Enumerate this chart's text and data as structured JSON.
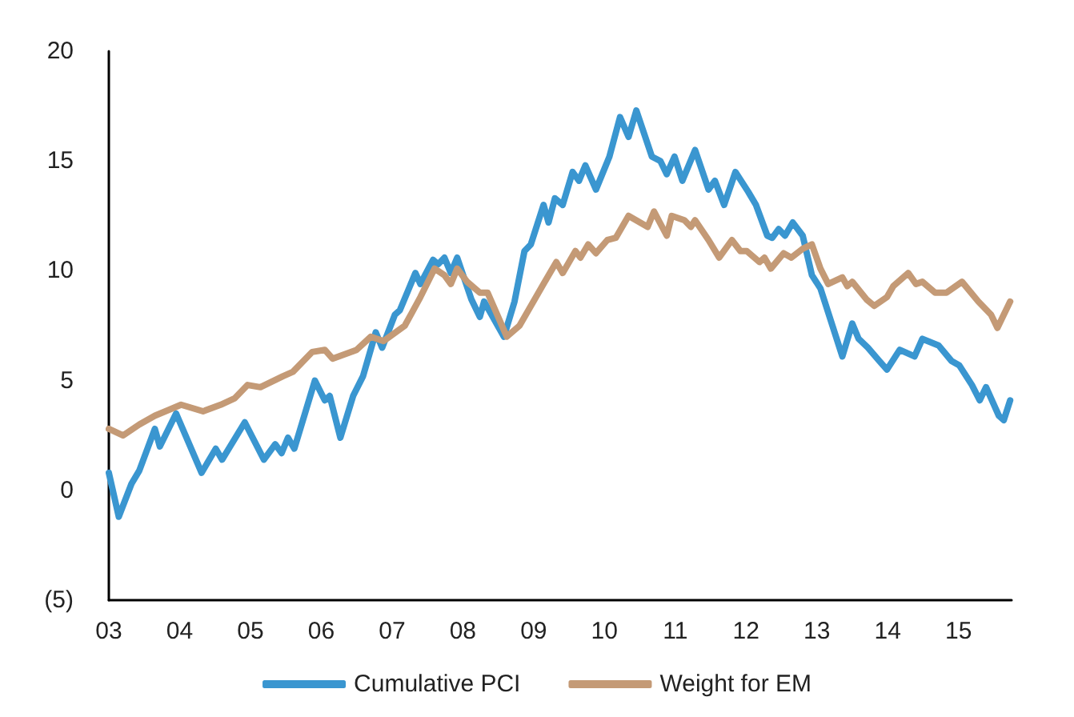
{
  "chart_data": {
    "type": "line",
    "xlim": [
      2003,
      2015.75
    ],
    "xticks": [
      {
        "value": 2003,
        "label": "03"
      },
      {
        "value": 2004,
        "label": "04"
      },
      {
        "value": 2005,
        "label": "05"
      },
      {
        "value": 2006,
        "label": "06"
      },
      {
        "value": 2007,
        "label": "07"
      },
      {
        "value": 2008,
        "label": "08"
      },
      {
        "value": 2009,
        "label": "09"
      },
      {
        "value": 2010,
        "label": "10"
      },
      {
        "value": 2011,
        "label": "11"
      },
      {
        "value": 2012,
        "label": "12"
      },
      {
        "value": 2013,
        "label": "13"
      },
      {
        "value": 2014,
        "label": "14"
      },
      {
        "value": 2015,
        "label": "15"
      }
    ],
    "ylim": [
      -5,
      20
    ],
    "yticks": [
      {
        "value": -5,
        "label": "(5)"
      },
      0,
      5,
      10,
      15,
      20
    ],
    "grid": false,
    "legend": "bottom",
    "marker": "none",
    "line_style": "solid",
    "series": [
      {
        "name": "Cumulative PCI",
        "color": "#3a96d0",
        "x": [
          2003.0,
          2003.14,
          2003.32,
          2003.43,
          2003.65,
          2003.72,
          2003.95,
          2004.31,
          2004.51,
          2004.6,
          2004.92,
          2005.19,
          2005.35,
          2005.44,
          2005.53,
          2005.62,
          2005.91,
          2006.05,
          2006.12,
          2006.27,
          2006.45,
          2006.59,
          2006.77,
          2006.86,
          2007.04,
          2007.11,
          2007.33,
          2007.4,
          2007.58,
          2007.65,
          2007.74,
          2007.83,
          2007.92,
          2008.12,
          2008.24,
          2008.3,
          2008.58,
          2008.73,
          2008.87,
          2008.96,
          2009.14,
          2009.21,
          2009.3,
          2009.41,
          2009.55,
          2009.64,
          2009.73,
          2009.88,
          2010.07,
          2010.22,
          2010.34,
          2010.45,
          2010.67,
          2010.79,
          2010.88,
          2010.99,
          2011.1,
          2011.28,
          2011.47,
          2011.56,
          2011.69,
          2011.85,
          2012.03,
          2012.14,
          2012.3,
          2012.37,
          2012.46,
          2012.55,
          2012.66,
          2012.8,
          2012.93,
          2013.05,
          2013.36,
          2013.5,
          2013.59,
          2013.72,
          2013.88,
          2013.99,
          2014.17,
          2014.38,
          2014.49,
          2014.72,
          2014.9,
          2015.01,
          2015.19,
          2015.3,
          2015.39,
          2015.57,
          2015.64,
          2015.73
        ],
        "values": [
          0.8,
          -1.2,
          0.3,
          0.9,
          2.8,
          2.0,
          3.5,
          0.8,
          1.9,
          1.4,
          3.1,
          1.4,
          2.1,
          1.7,
          2.4,
          1.9,
          5.0,
          4.1,
          4.3,
          2.4,
          4.3,
          5.2,
          7.2,
          6.5,
          8.0,
          8.2,
          9.9,
          9.4,
          10.5,
          10.3,
          10.6,
          9.9,
          10.6,
          8.7,
          7.9,
          8.6,
          7.0,
          8.6,
          10.9,
          11.2,
          13.0,
          12.2,
          13.3,
          13.0,
          14.5,
          14.1,
          14.8,
          13.7,
          15.2,
          17.0,
          16.1,
          17.3,
          15.2,
          15.0,
          14.4,
          15.2,
          14.1,
          15.5,
          13.7,
          14.1,
          13.0,
          14.5,
          13.6,
          13.0,
          11.6,
          11.5,
          11.9,
          11.6,
          12.2,
          11.6,
          9.8,
          9.2,
          6.1,
          7.6,
          6.9,
          6.5,
          5.9,
          5.5,
          6.4,
          6.1,
          6.9,
          6.6,
          5.9,
          5.7,
          4.8,
          4.1,
          4.7,
          3.4,
          3.2,
          4.1
        ]
      },
      {
        "name": "Weight for EM",
        "color": "#c49a76",
        "x": [
          2003.0,
          2003.2,
          2003.43,
          2003.65,
          2004.02,
          2004.33,
          2004.58,
          2004.78,
          2004.96,
          2005.14,
          2005.46,
          2005.6,
          2005.87,
          2006.05,
          2006.16,
          2006.5,
          2006.7,
          2006.88,
          2007.18,
          2007.4,
          2007.6,
          2007.74,
          2007.83,
          2007.92,
          2008.06,
          2008.24,
          2008.35,
          2008.62,
          2008.8,
          2009.14,
          2009.32,
          2009.41,
          2009.59,
          2009.66,
          2009.77,
          2009.88,
          2010.04,
          2010.16,
          2010.34,
          2010.61,
          2010.7,
          2010.88,
          2010.95,
          2011.13,
          2011.22,
          2011.28,
          2011.47,
          2011.62,
          2011.8,
          2011.92,
          2012.01,
          2012.19,
          2012.26,
          2012.35,
          2012.53,
          2012.64,
          2012.8,
          2012.93,
          2013.05,
          2013.16,
          2013.36,
          2013.43,
          2013.5,
          2013.7,
          2013.81,
          2013.99,
          2014.08,
          2014.29,
          2014.4,
          2014.49,
          2014.67,
          2014.83,
          2015.05,
          2015.28,
          2015.46,
          2015.55,
          2015.73
        ],
        "values": [
          2.8,
          2.5,
          3.0,
          3.4,
          3.9,
          3.6,
          3.9,
          4.2,
          4.8,
          4.7,
          5.2,
          5.4,
          6.3,
          6.4,
          6.0,
          6.4,
          7.0,
          6.8,
          7.5,
          8.8,
          10.1,
          9.8,
          9.4,
          10.1,
          9.5,
          9.0,
          9.0,
          7.0,
          7.5,
          9.4,
          10.4,
          9.9,
          10.9,
          10.6,
          11.2,
          10.8,
          11.4,
          11.5,
          12.5,
          12.0,
          12.7,
          11.6,
          12.5,
          12.3,
          12.0,
          12.3,
          11.4,
          10.6,
          11.4,
          10.9,
          10.9,
          10.4,
          10.6,
          10.1,
          10.8,
          10.6,
          11.0,
          11.2,
          10.1,
          9.4,
          9.7,
          9.3,
          9.5,
          8.7,
          8.4,
          8.8,
          9.3,
          9.9,
          9.4,
          9.5,
          9.0,
          9.0,
          9.5,
          8.6,
          8.0,
          7.4,
          8.6
        ]
      }
    ]
  }
}
